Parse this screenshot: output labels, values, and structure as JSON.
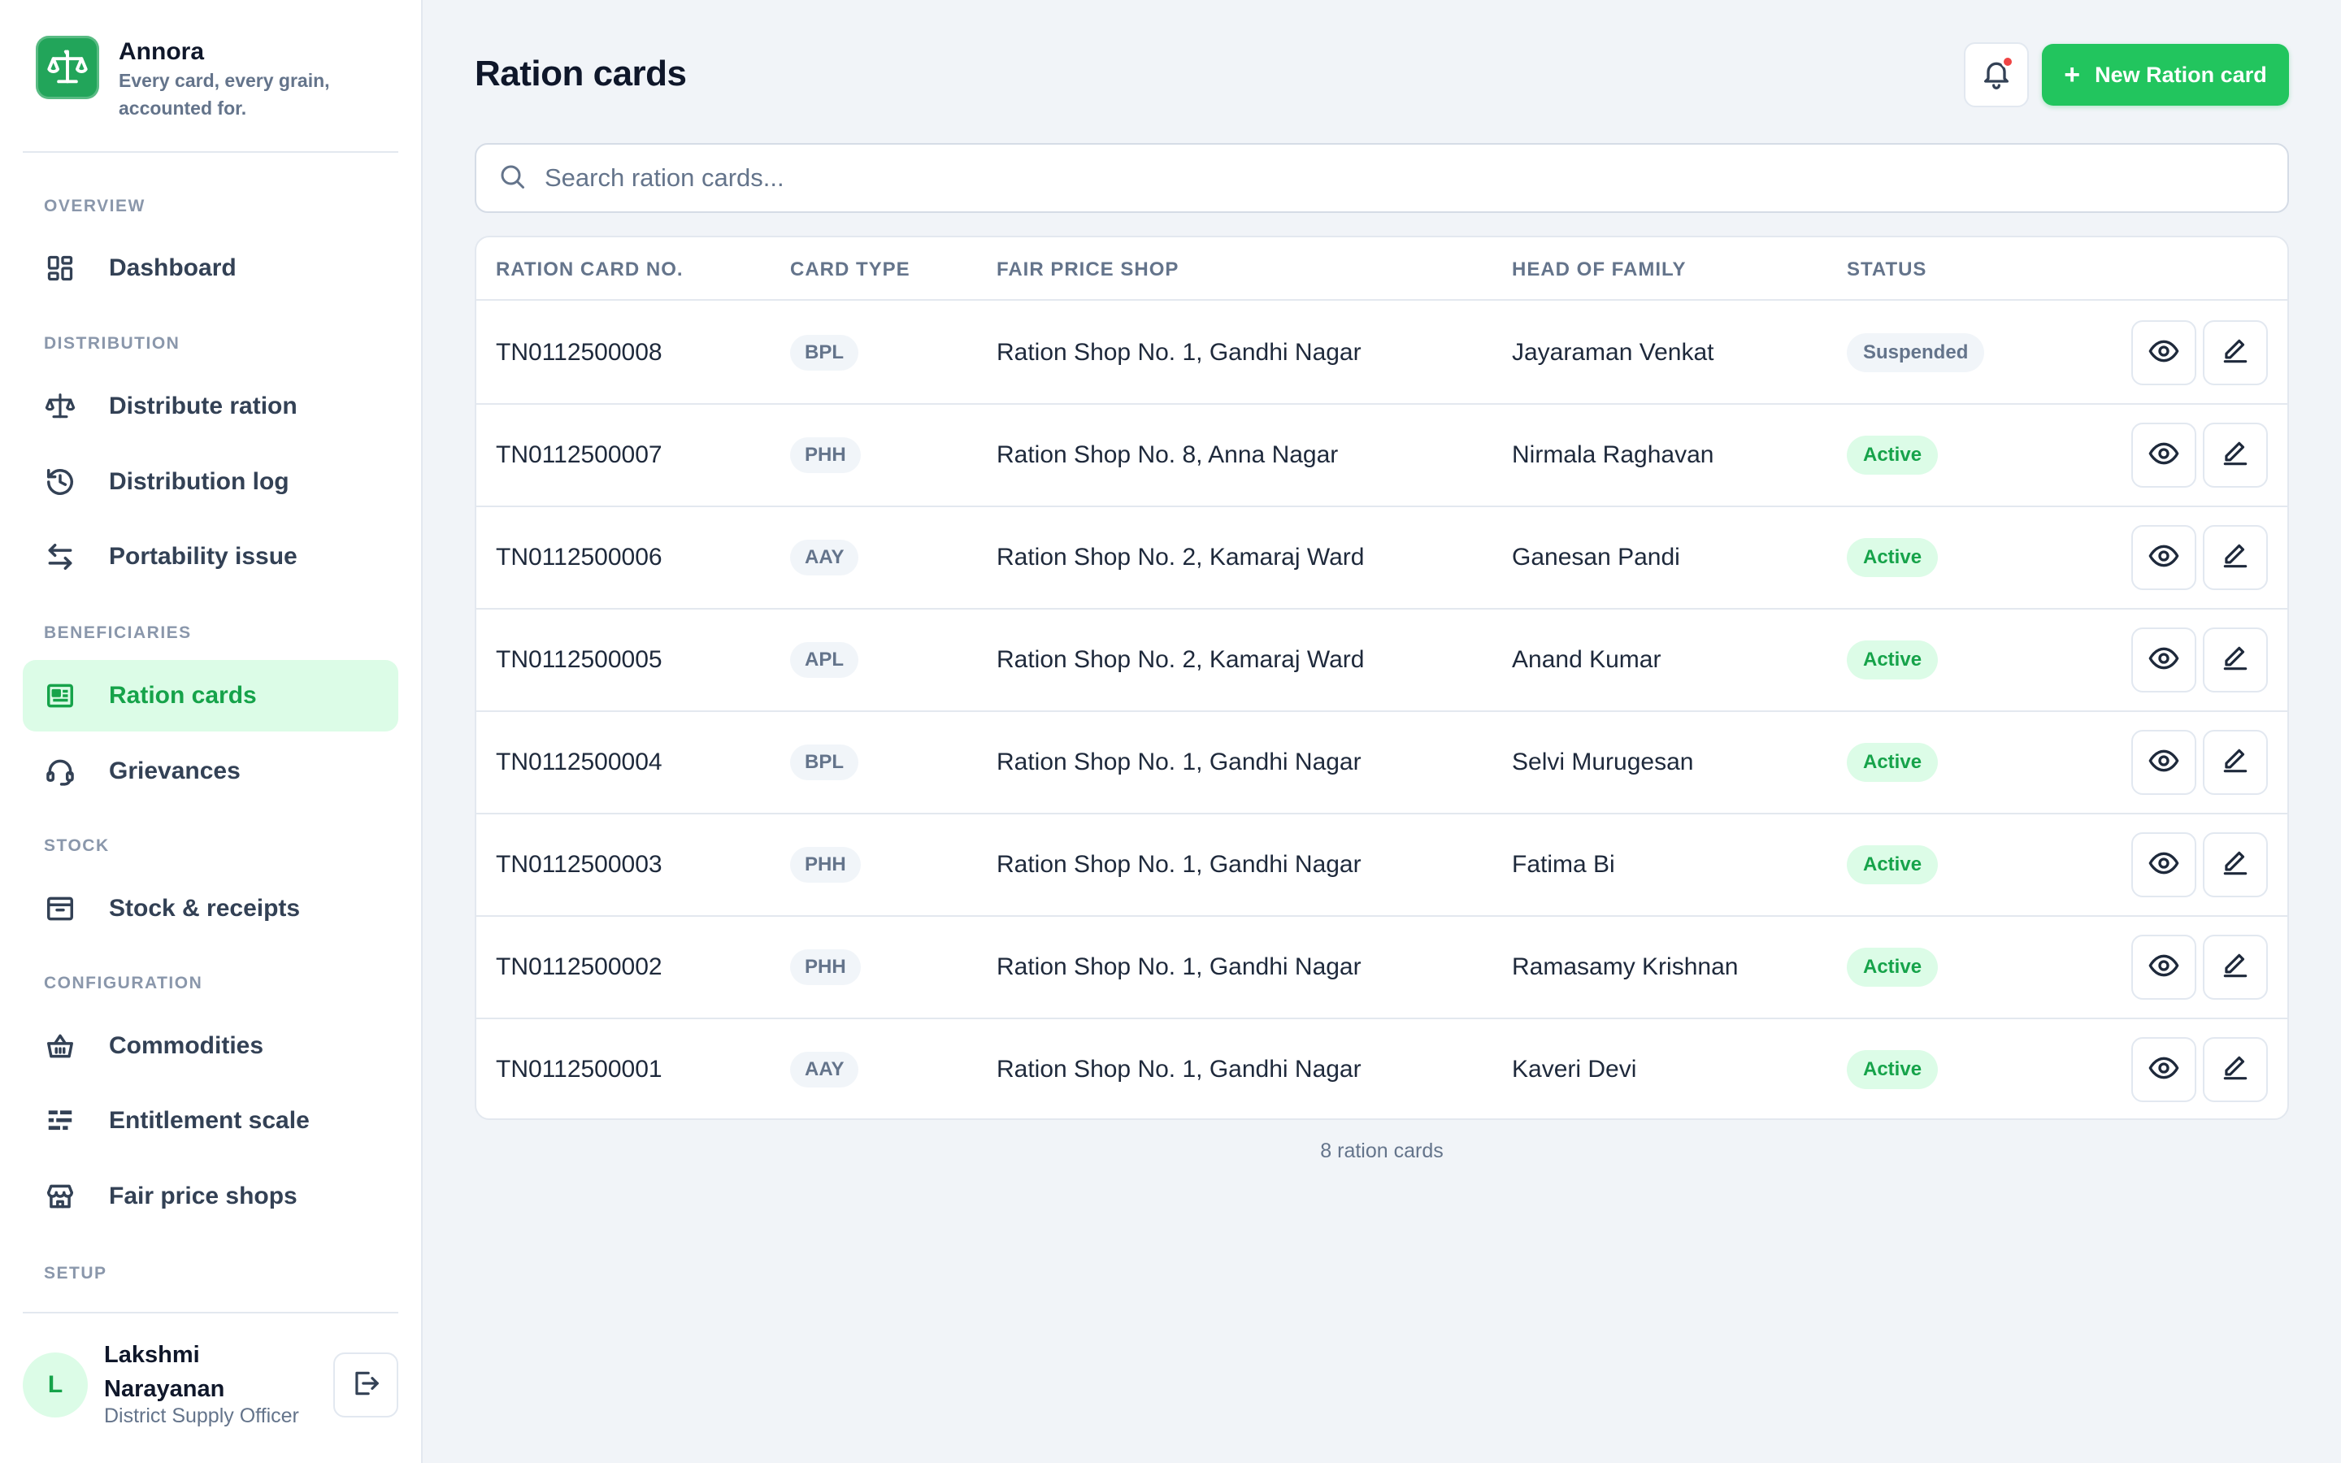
{
  "brand": {
    "name": "Annora",
    "tagline": "Every card, every grain, accounted for.",
    "logo_icon": "scale-icon",
    "accent_color": "#22c55e"
  },
  "sidebar": {
    "sections": [
      {
        "label": "OVERVIEW",
        "items": [
          {
            "label": "Dashboard",
            "icon": "dashboard-icon"
          }
        ]
      },
      {
        "label": "DISTRIBUTION",
        "items": [
          {
            "label": "Distribute ration",
            "icon": "scale-icon"
          },
          {
            "label": "Distribution log",
            "icon": "history-icon"
          },
          {
            "label": "Portability issue",
            "icon": "transfer-icon"
          }
        ]
      },
      {
        "label": "BENEFICIARIES",
        "items": [
          {
            "label": "Ration cards",
            "icon": "card-icon",
            "active": true
          },
          {
            "label": "Grievances",
            "icon": "headset-icon"
          }
        ]
      },
      {
        "label": "STOCK",
        "items": [
          {
            "label": "Stock & receipts",
            "icon": "archive-icon"
          }
        ]
      },
      {
        "label": "CONFIGURATION",
        "items": [
          {
            "label": "Commodities",
            "icon": "basket-icon"
          },
          {
            "label": "Entitlement scale",
            "icon": "list-settings-icon"
          },
          {
            "label": "Fair price shops",
            "icon": "store-icon"
          }
        ]
      },
      {
        "label": "SETUP",
        "items": []
      }
    ]
  },
  "user": {
    "initial": "L",
    "name": "Lakshmi Narayanan",
    "role": "District Supply Officer"
  },
  "header": {
    "title": "Ration cards",
    "new_button_label": "New Ration card",
    "has_notification": true
  },
  "search": {
    "placeholder": "Search ration cards...",
    "value": ""
  },
  "table": {
    "columns": [
      "RATION CARD NO.",
      "CARD TYPE",
      "FAIR PRICE SHOP",
      "HEAD OF FAMILY",
      "STATUS"
    ],
    "rows": [
      {
        "card_no": "TN0112500008",
        "type": "BPL",
        "shop": "Ration Shop No. 1, Gandhi Nagar",
        "head": "Jayaraman Venkat",
        "status": "Suspended"
      },
      {
        "card_no": "TN0112500007",
        "type": "PHH",
        "shop": "Ration Shop No. 8, Anna Nagar",
        "head": "Nirmala Raghavan",
        "status": "Active"
      },
      {
        "card_no": "TN0112500006",
        "type": "AAY",
        "shop": "Ration Shop No. 2, Kamaraj Ward",
        "head": "Ganesan Pandi",
        "status": "Active"
      },
      {
        "card_no": "TN0112500005",
        "type": "APL",
        "shop": "Ration Shop No. 2, Kamaraj Ward",
        "head": "Anand Kumar",
        "status": "Active"
      },
      {
        "card_no": "TN0112500004",
        "type": "BPL",
        "shop": "Ration Shop No. 1, Gandhi Nagar",
        "head": "Selvi Murugesan",
        "status": "Active"
      },
      {
        "card_no": "TN0112500003",
        "type": "PHH",
        "shop": "Ration Shop No. 1, Gandhi Nagar",
        "head": "Fatima Bi",
        "status": "Active"
      },
      {
        "card_no": "TN0112500002",
        "type": "PHH",
        "shop": "Ration Shop No. 1, Gandhi Nagar",
        "head": "Ramasamy Krishnan",
        "status": "Active"
      },
      {
        "card_no": "TN0112500001",
        "type": "AAY",
        "shop": "Ration Shop No. 1, Gandhi Nagar",
        "head": "Kaveri Devi",
        "status": "Active"
      }
    ],
    "row_actions": [
      "eye-icon",
      "pencil-icon"
    ],
    "footer_count": "8 ration cards"
  }
}
